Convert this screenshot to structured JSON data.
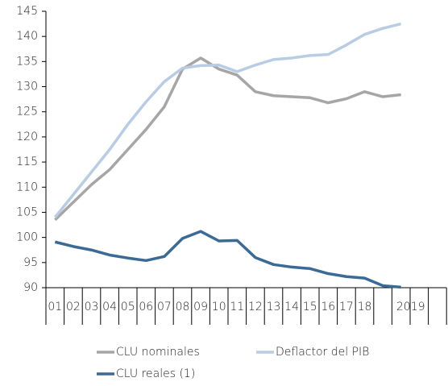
{
  "chart_data": {
    "type": "line",
    "categories": [
      "01",
      "02",
      "03",
      "04",
      "05",
      "06",
      "07",
      "08",
      "09",
      "10",
      "11",
      "12",
      "13",
      "14",
      "15",
      "16",
      "17",
      "18",
      null,
      "2019",
      null,
      null
    ],
    "series": [
      {
        "name": "CLU nominales",
        "color": "#a6a6a6",
        "values": [
          103.5,
          107,
          110.5,
          113.5,
          117.5,
          121.5,
          126,
          133.5,
          135.7,
          133.5,
          132.3,
          129,
          128.2,
          128,
          127.8,
          126.8,
          127.6,
          129,
          128,
          128.4,
          null,
          null
        ]
      },
      {
        "name": "Deflactor del PIB",
        "color": "#b8cce4",
        "values": [
          104,
          108.5,
          113,
          117.5,
          122.5,
          127,
          131,
          133.7,
          134.2,
          134.3,
          133,
          134.3,
          135.4,
          135.7,
          136.2,
          136.4,
          138.3,
          140.4,
          141.6,
          142.5,
          null,
          null
        ]
      },
      {
        "name": "CLU reales (1)",
        "color": "#3a6a96",
        "values": [
          99.1,
          98.2,
          97.5,
          96.5,
          95.9,
          95.4,
          96.2,
          99.8,
          101.2,
          99.3,
          99.4,
          96,
          94.6,
          94.1,
          93.8,
          92.8,
          92.2,
          91.9,
          90.4,
          90.1,
          null,
          null
        ]
      }
    ],
    "ylim": [
      90,
      145
    ],
    "yticks": [
      90,
      95,
      100,
      105,
      110,
      115,
      120,
      125,
      130,
      135,
      140,
      145
    ],
    "grid": false,
    "legend": "bottom"
  }
}
